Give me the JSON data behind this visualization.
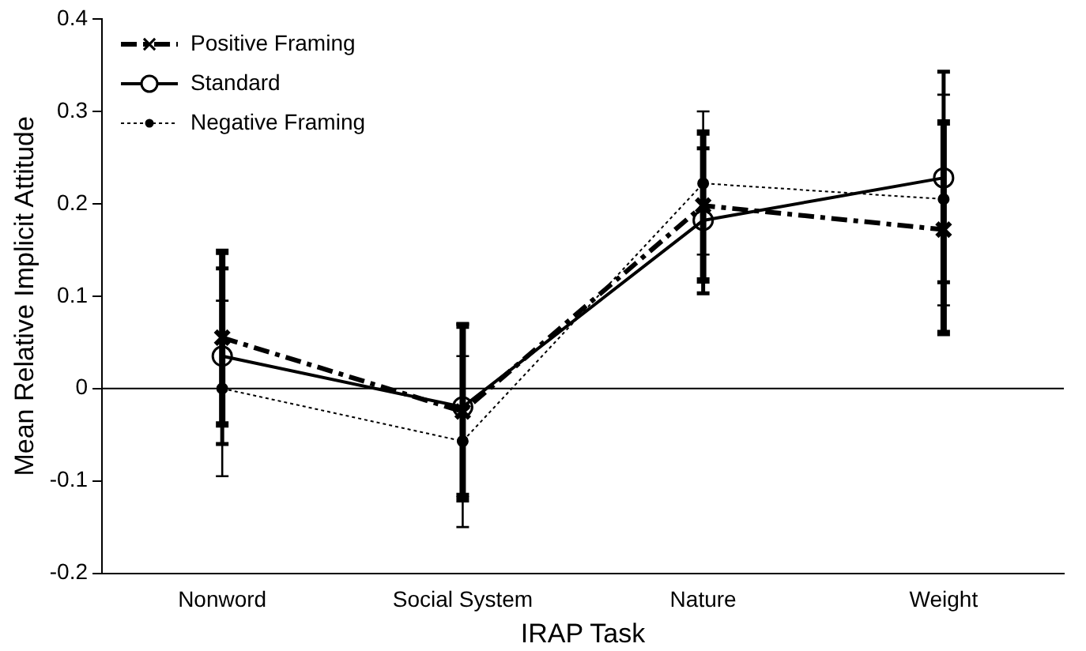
{
  "chart_data": {
    "type": "line",
    "xlabel": "IRAP Task",
    "ylabel": "Mean Relative Implicit Attitude",
    "categories": [
      "Nonword",
      "Social System",
      "Nature",
      "Weight"
    ],
    "series": [
      {
        "name": "Positive Framing",
        "color": "#000000",
        "line_style": "dashed",
        "marker": "cross",
        "values": [
          0.055,
          -0.025,
          0.198,
          0.172
        ],
        "errors": [
          [
            -0.039,
            0.148
          ],
          [
            -0.12,
            0.068
          ],
          [
            0.117,
            0.277
          ],
          [
            0.06,
            0.288
          ]
        ]
      },
      {
        "name": "Standard",
        "color": "#000000",
        "line_style": "solid",
        "marker": "circle",
        "values": [
          0.035,
          -0.02,
          0.182,
          0.228
        ],
        "errors": [
          [
            -0.06,
            0.13
          ],
          [
            -0.115,
            0.07
          ],
          [
            0.103,
            0.26
          ],
          [
            0.115,
            0.343
          ]
        ]
      },
      {
        "name": "Negative Framing",
        "color": "#000000",
        "line_style": "dotted",
        "marker": "circle",
        "values": [
          0.0,
          -0.057,
          0.222,
          0.205
        ],
        "errors": [
          [
            -0.095,
            0.095
          ],
          [
            -0.15,
            0.035
          ],
          [
            0.145,
            0.3
          ],
          [
            0.09,
            0.318
          ]
        ]
      }
    ],
    "ylim": [
      -0.2,
      0.4
    ],
    "yticks": [
      -0.2,
      -0.1,
      0,
      0.1,
      0.2,
      0.3,
      0.4
    ],
    "grid": false,
    "legend": "top left",
    "ref_lines": [
      {
        "axis": "y",
        "value": 0,
        "label": null,
        "color": "#000000"
      }
    ]
  }
}
